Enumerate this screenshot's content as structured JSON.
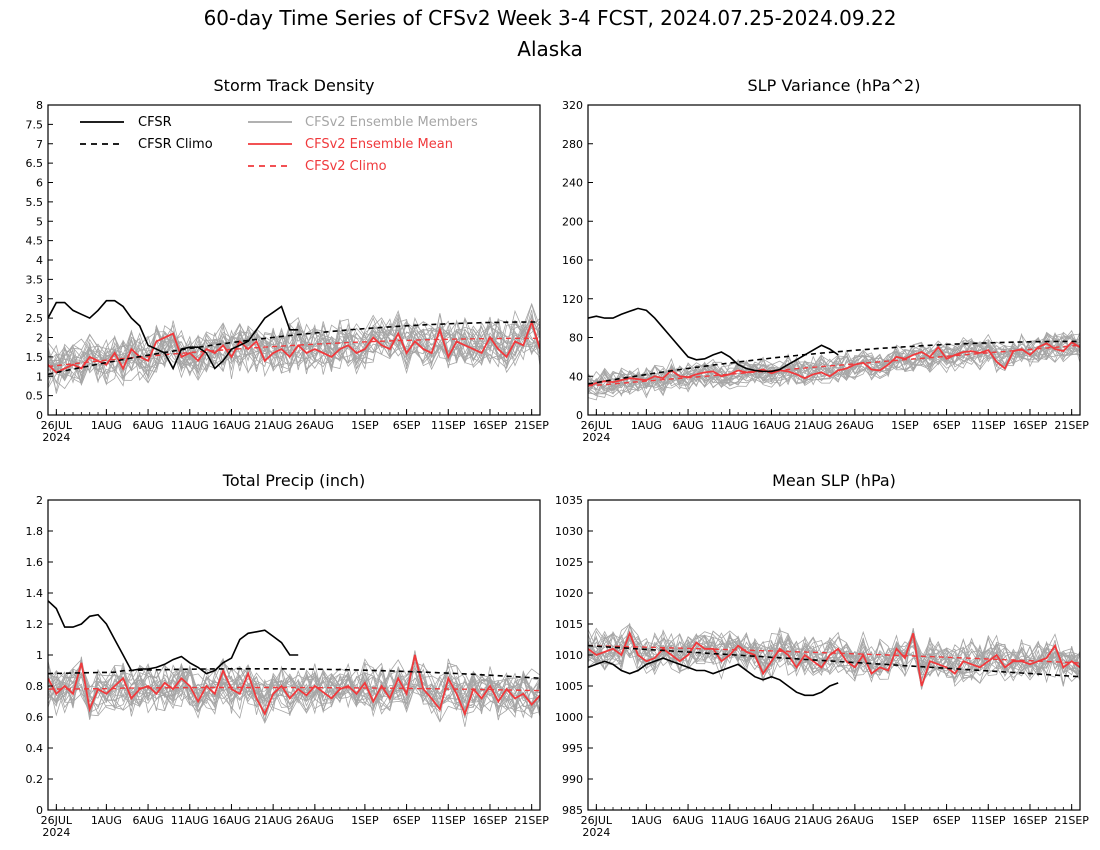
{
  "figure": {
    "title_line1": "60-day Time Series of CFSv2 Week 3-4 FCST, 2024.07.25-2024.09.22",
    "title_line2": "Alaska"
  },
  "colors": {
    "cfsr": "#000000",
    "cfsr_climo": "#000000",
    "ensemble_members": "#a6a6a6",
    "ensemble_mean": "#f0393c",
    "cfsv2_climo": "#f0393c"
  },
  "x_axis": {
    "year_label": "2024",
    "ticks": [
      {
        "day": 1,
        "label": "26JUL"
      },
      {
        "day": 7,
        "label": "1AUG"
      },
      {
        "day": 12,
        "label": "6AUG"
      },
      {
        "day": 17,
        "label": "11AUG"
      },
      {
        "day": 22,
        "label": "16AUG"
      },
      {
        "day": 27,
        "label": "21AUG"
      },
      {
        "day": 32,
        "label": "26AUG"
      },
      {
        "day": 38,
        "label": "1SEP"
      },
      {
        "day": 43,
        "label": "6SEP"
      },
      {
        "day": 48,
        "label": "11SEP"
      },
      {
        "day": 53,
        "label": "16SEP"
      },
      {
        "day": 58,
        "label": "21SEP"
      }
    ]
  },
  "legend": [
    {
      "key": "cfsr",
      "label": "CFSR",
      "style": "solid",
      "color": "#000000"
    },
    {
      "key": "cfsr_climo",
      "label": "CFSR Climo",
      "style": "dashed",
      "color": "#000000"
    },
    {
      "key": "ensemble_members",
      "label": "CFSv2 Ensemble Members",
      "style": "solid",
      "color": "#a6a6a6"
    },
    {
      "key": "ensemble_mean",
      "label": "CFSv2 Ensemble Mean",
      "style": "solid",
      "color": "#f0393c"
    },
    {
      "key": "cfsv2_climo",
      "label": "CFSv2 Climo",
      "style": "dashed",
      "color": "#f0393c"
    }
  ],
  "chart_data": [
    {
      "type": "line",
      "title": "Storm Track Density",
      "ylim": [
        0,
        8
      ],
      "yticks": [
        0,
        0.5,
        1,
        1.5,
        2,
        2.5,
        3,
        3.5,
        4,
        4.5,
        5,
        5.5,
        6,
        6.5,
        7,
        7.5,
        8
      ],
      "cfsr_days": [
        0,
        1,
        2,
        3,
        4,
        5,
        6,
        7,
        8,
        9,
        10,
        11,
        12,
        13,
        14,
        15,
        16,
        17,
        18,
        19,
        20,
        21,
        22,
        23,
        24,
        25,
        26,
        27,
        28,
        29,
        30
      ],
      "cfsr": [
        2.5,
        2.9,
        2.9,
        2.7,
        2.6,
        2.5,
        2.7,
        2.95,
        2.95,
        2.8,
        2.5,
        2.3,
        1.8,
        1.7,
        1.6,
        1.2,
        1.7,
        1.75,
        1.75,
        1.6,
        1.2,
        1.4,
        1.7,
        1.8,
        1.9,
        2.2,
        2.5,
        2.65,
        2.8,
        2.2,
        2.2
      ],
      "cfsr_climo": {
        "start": 1.05,
        "end": 2.4,
        "shape": "concave"
      },
      "cfsv2_climo": {
        "start": 1.25,
        "end": 1.98,
        "shape": "concave"
      },
      "ensemble_mean": [
        1.3,
        1.1,
        1.2,
        1.3,
        1.2,
        1.5,
        1.4,
        1.3,
        1.6,
        1.2,
        1.7,
        1.5,
        1.4,
        1.9,
        2.0,
        2.1,
        1.5,
        1.6,
        1.4,
        1.7,
        1.6,
        1.8,
        1.5,
        1.9,
        1.7,
        1.9,
        1.4,
        1.6,
        1.7,
        1.5,
        1.8,
        1.6,
        1.7,
        1.6,
        1.5,
        1.7,
        1.8,
        1.6,
        1.7,
        2.0,
        1.8,
        1.7,
        2.1,
        1.6,
        1.9,
        1.7,
        1.6,
        2.2,
        1.5,
        1.9,
        1.8,
        1.7,
        1.6,
        2.0,
        1.7,
        1.5,
        1.9,
        1.8,
        2.4,
        1.7
      ],
      "members": {
        "count": 24,
        "mean_offset": 0,
        "spread": 0.55
      }
    },
    {
      "type": "line",
      "title": "SLP Variance (hPa^2)",
      "ylim": [
        0,
        320
      ],
      "yticks": [
        0,
        40,
        80,
        120,
        160,
        200,
        240,
        280,
        320
      ],
      "cfsr_days": [
        0,
        1,
        2,
        3,
        4,
        5,
        6,
        7,
        8,
        9,
        10,
        11,
        12,
        13,
        14,
        15,
        16,
        17,
        18,
        19,
        20,
        21,
        22,
        23,
        24,
        25,
        26,
        27,
        28,
        29,
        30
      ],
      "cfsr": [
        100,
        102,
        100,
        100,
        104,
        107,
        110,
        108,
        100,
        90,
        80,
        70,
        60,
        57,
        58,
        62,
        65,
        60,
        52,
        48,
        46,
        45,
        45,
        47,
        52,
        57,
        62,
        67,
        72,
        68,
        62
      ],
      "cfsr_climo": {
        "start": 32,
        "end": 76,
        "shape": "concave"
      },
      "cfsv2_climo": {
        "start": 30,
        "end": 72,
        "shape": "linear"
      },
      "ensemble_mean": [
        30,
        33,
        35,
        34,
        36,
        38,
        37,
        36,
        40,
        38,
        46,
        40,
        39,
        42,
        44,
        45,
        40,
        42,
        46,
        44,
        45,
        47,
        43,
        46,
        45,
        42,
        38,
        42,
        44,
        40,
        46,
        48,
        52,
        54,
        47,
        46,
        52,
        60,
        58,
        62,
        65,
        60,
        70,
        58,
        62,
        65,
        66,
        64,
        67,
        55,
        48,
        66,
        68,
        62,
        70,
        74,
        68,
        66,
        75,
        70
      ],
      "members": {
        "count": 24,
        "mean_offset": 0,
        "spread": 13
      }
    },
    {
      "type": "line",
      "title": "Total Precip (inch)",
      "ylim": [
        0,
        2
      ],
      "yticks": [
        0,
        0.2,
        0.4,
        0.6,
        0.8,
        1,
        1.2,
        1.4,
        1.6,
        1.8,
        2
      ],
      "cfsr_days": [
        0,
        1,
        2,
        3,
        4,
        5,
        6,
        7,
        8,
        9,
        10,
        11,
        12,
        13,
        14,
        15,
        16,
        17,
        18,
        19,
        20,
        21,
        22,
        23,
        24,
        25,
        26,
        27,
        28,
        29,
        30
      ],
      "cfsr": [
        1.35,
        1.3,
        1.18,
        1.18,
        1.2,
        1.25,
        1.26,
        1.2,
        1.1,
        1.0,
        0.9,
        0.91,
        0.91,
        0.92,
        0.94,
        0.97,
        0.99,
        0.95,
        0.92,
        0.88,
        0.9,
        0.95,
        0.98,
        1.1,
        1.14,
        1.15,
        1.16,
        1.12,
        1.08,
        1.0,
        1.0
      ],
      "cfsr_climo": {
        "start": 0.88,
        "end": 0.85,
        "shape": "hump",
        "peak": 0.91
      },
      "cfsv2_climo": {
        "start": 0.78,
        "end": 0.77,
        "shape": "hump",
        "peak": 0.79
      },
      "ensemble_mean": [
        0.85,
        0.75,
        0.8,
        0.75,
        0.95,
        0.65,
        0.78,
        0.75,
        0.8,
        0.85,
        0.72,
        0.78,
        0.8,
        0.75,
        0.82,
        0.78,
        0.85,
        0.8,
        0.7,
        0.8,
        0.75,
        0.9,
        0.78,
        0.75,
        0.88,
        0.72,
        0.62,
        0.75,
        0.8,
        0.72,
        0.78,
        0.74,
        0.8,
        0.76,
        0.72,
        0.78,
        0.8,
        0.75,
        0.82,
        0.7,
        0.8,
        0.72,
        0.85,
        0.75,
        1.0,
        0.78,
        0.72,
        0.65,
        0.85,
        0.75,
        0.62,
        0.78,
        0.72,
        0.8,
        0.7,
        0.78,
        0.72,
        0.75,
        0.68,
        0.74
      ],
      "members": {
        "count": 24,
        "mean_offset": 0,
        "spread": 0.13
      }
    },
    {
      "type": "line",
      "title": "Mean SLP (hPa)",
      "ylim": [
        985,
        1035
      ],
      "yticks": [
        985,
        990,
        995,
        1000,
        1005,
        1010,
        1015,
        1020,
        1025,
        1030,
        1035
      ],
      "cfsr_days": [
        0,
        1,
        2,
        3,
        4,
        5,
        6,
        7,
        8,
        9,
        10,
        11,
        12,
        13,
        14,
        15,
        16,
        17,
        18,
        19,
        20,
        21,
        22,
        23,
        24,
        25,
        26,
        27,
        28,
        29,
        30
      ],
      "cfsr": [
        1008,
        1008.5,
        1009,
        1008.5,
        1007.5,
        1007,
        1007.5,
        1008.5,
        1009,
        1009.5,
        1009,
        1008.5,
        1008,
        1007.5,
        1007.5,
        1007,
        1007.5,
        1008,
        1008.5,
        1007.5,
        1006.5,
        1006,
        1006.5,
        1006,
        1005,
        1004,
        1003.5,
        1003.5,
        1004,
        1005,
        1005.5
      ],
      "cfsr_climo": {
        "start": 1011.5,
        "end": 1006.5,
        "shape": "linear"
      },
      "cfsv2_climo": {
        "start": 1011.5,
        "end": 1008.3,
        "shape": "convex"
      },
      "ensemble_mean": [
        1011,
        1010,
        1010.5,
        1011,
        1010,
        1013.5,
        1010,
        1009,
        1009.5,
        1011,
        1010,
        1009,
        1010,
        1012,
        1011,
        1011,
        1009,
        1010,
        1011.5,
        1010.5,
        1010,
        1007,
        1009,
        1011,
        1010,
        1008,
        1010,
        1009,
        1008,
        1010,
        1011,
        1009,
        1008,
        1010,
        1007,
        1008,
        1007.5,
        1011,
        1009.5,
        1013.5,
        1005,
        1009,
        1008.5,
        1008,
        1007,
        1009,
        1008.5,
        1008,
        1009,
        1010,
        1008,
        1009,
        1009,
        1008.5,
        1009,
        1009.5,
        1011.5,
        1008,
        1009,
        1008
      ],
      "members": {
        "count": 24,
        "mean_offset": 0,
        "spread": 2.8
      }
    }
  ]
}
